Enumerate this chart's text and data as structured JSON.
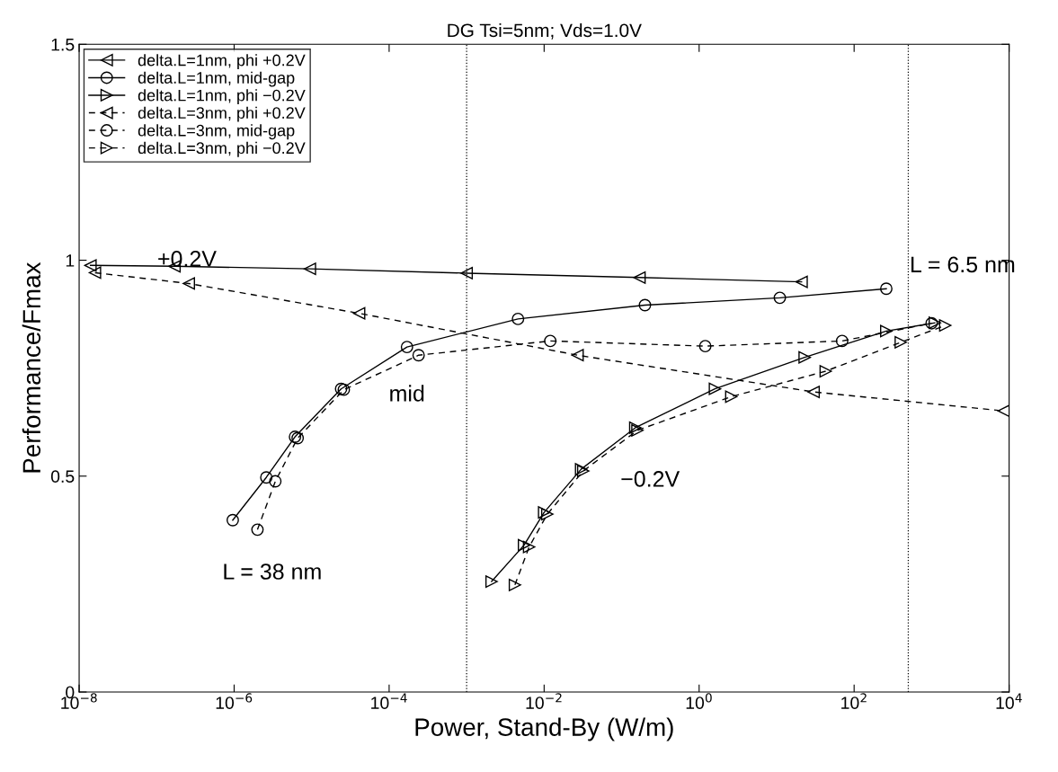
{
  "chart_data": {
    "type": "line",
    "title": "DG Tsi=5nm; Vds=1.0V",
    "xlabel": "Power, Stand-By (W/m)",
    "ylabel": "Performance/Fmax",
    "log": "x",
    "xlim": [
      1e-08,
      10000
    ],
    "ylim": [
      0,
      1.5
    ],
    "xticks": [
      {
        "value": 1e-08,
        "label": "10$^{−8}$"
      },
      {
        "value": 1e-06,
        "label": "10$^{−6}$"
      },
      {
        "value": 0.0001,
        "label": "10$^{−4}$"
      },
      {
        "value": 0.01,
        "label": "10$^{−2}$"
      },
      {
        "value": 1,
        "label": "10$^{0}$"
      },
      {
        "value": 100,
        "label": "10$^{2}$"
      },
      {
        "value": 10000,
        "label": "10$^{4}$"
      }
    ],
    "yticks": [
      0,
      0.5,
      1,
      1.5
    ],
    "grid": false,
    "legend": "top left",
    "series": [
      {
        "name": "delta.L=1nm, phi +0.2V",
        "color": "#000000",
        "marker": "triangle_left",
        "line_style": "solid",
        "x": [
          1.4e-08,
          1.7e-07,
          9.5e-06,
          0.001,
          0.17,
          21
        ],
        "values": [
          0.988,
          0.986,
          0.98,
          0.97,
          0.96,
          0.95
        ]
      },
      {
        "name": "delta.L=1nm, mid-gap",
        "color": "#000000",
        "marker": "circle",
        "line_style": "solid",
        "x": [
          9.6e-07,
          2.6e-06,
          6.1e-06,
          2.4e-05,
          0.00017,
          0.0046,
          0.2,
          11,
          260
        ],
        "values": [
          0.398,
          0.497,
          0.591,
          0.702,
          0.799,
          0.864,
          0.896,
          0.913,
          0.934
        ]
      },
      {
        "name": "delta.L=1nm, phi −0.2V",
        "color": "#000000",
        "marker": "triangle_right",
        "line_style": "solid",
        "x": [
          0.0021,
          0.0055,
          0.01,
          0.03,
          0.15,
          1.6,
          23,
          260,
          1100
        ],
        "values": [
          0.256,
          0.34,
          0.416,
          0.516,
          0.612,
          0.702,
          0.775,
          0.836,
          0.855
        ]
      },
      {
        "name": "delta.L=3nm, phi +0.2V",
        "color": "#000000",
        "marker": "triangle_left",
        "line_style": "dashed",
        "x": [
          1.6e-08,
          2.6e-07,
          4.1e-05,
          0.027,
          30,
          8500
        ],
        "values": [
          0.971,
          0.946,
          0.877,
          0.78,
          0.695,
          0.651
        ]
      },
      {
        "name": "delta.L=3nm, mid-gap",
        "color": "#000000",
        "marker": "circle",
        "line_style": "dashed",
        "x": [
          2e-06,
          3.4e-06,
          6.6e-06,
          2.6e-05,
          0.00024,
          0.012,
          1.2,
          70,
          1000
        ],
        "values": [
          0.376,
          0.488,
          0.588,
          0.7,
          0.78,
          0.813,
          0.801,
          0.813,
          0.854
        ]
      },
      {
        "name": "delta.L=3nm, phi −0.2V",
        "color": "#000000",
        "marker": "triangle_right",
        "line_style": "dashed",
        "x": [
          0.0042,
          0.0064,
          0.011,
          0.032,
          0.16,
          2.6,
          43,
          400,
          1500
        ],
        "values": [
          0.248,
          0.336,
          0.412,
          0.512,
          0.606,
          0.684,
          0.743,
          0.81,
          0.849
        ]
      }
    ],
    "ref_lines": [
      {
        "axis": "x",
        "value": 0.001,
        "color": "#000000",
        "line_style": "dotted"
      },
      {
        "axis": "x",
        "value": 500,
        "color": "#000000",
        "line_style": "dotted"
      }
    ],
    "annotations": [
      "+0.2V",
      "L = 6.5 nm",
      "mid",
      "−0.2V",
      "L = 38 nm"
    ]
  }
}
